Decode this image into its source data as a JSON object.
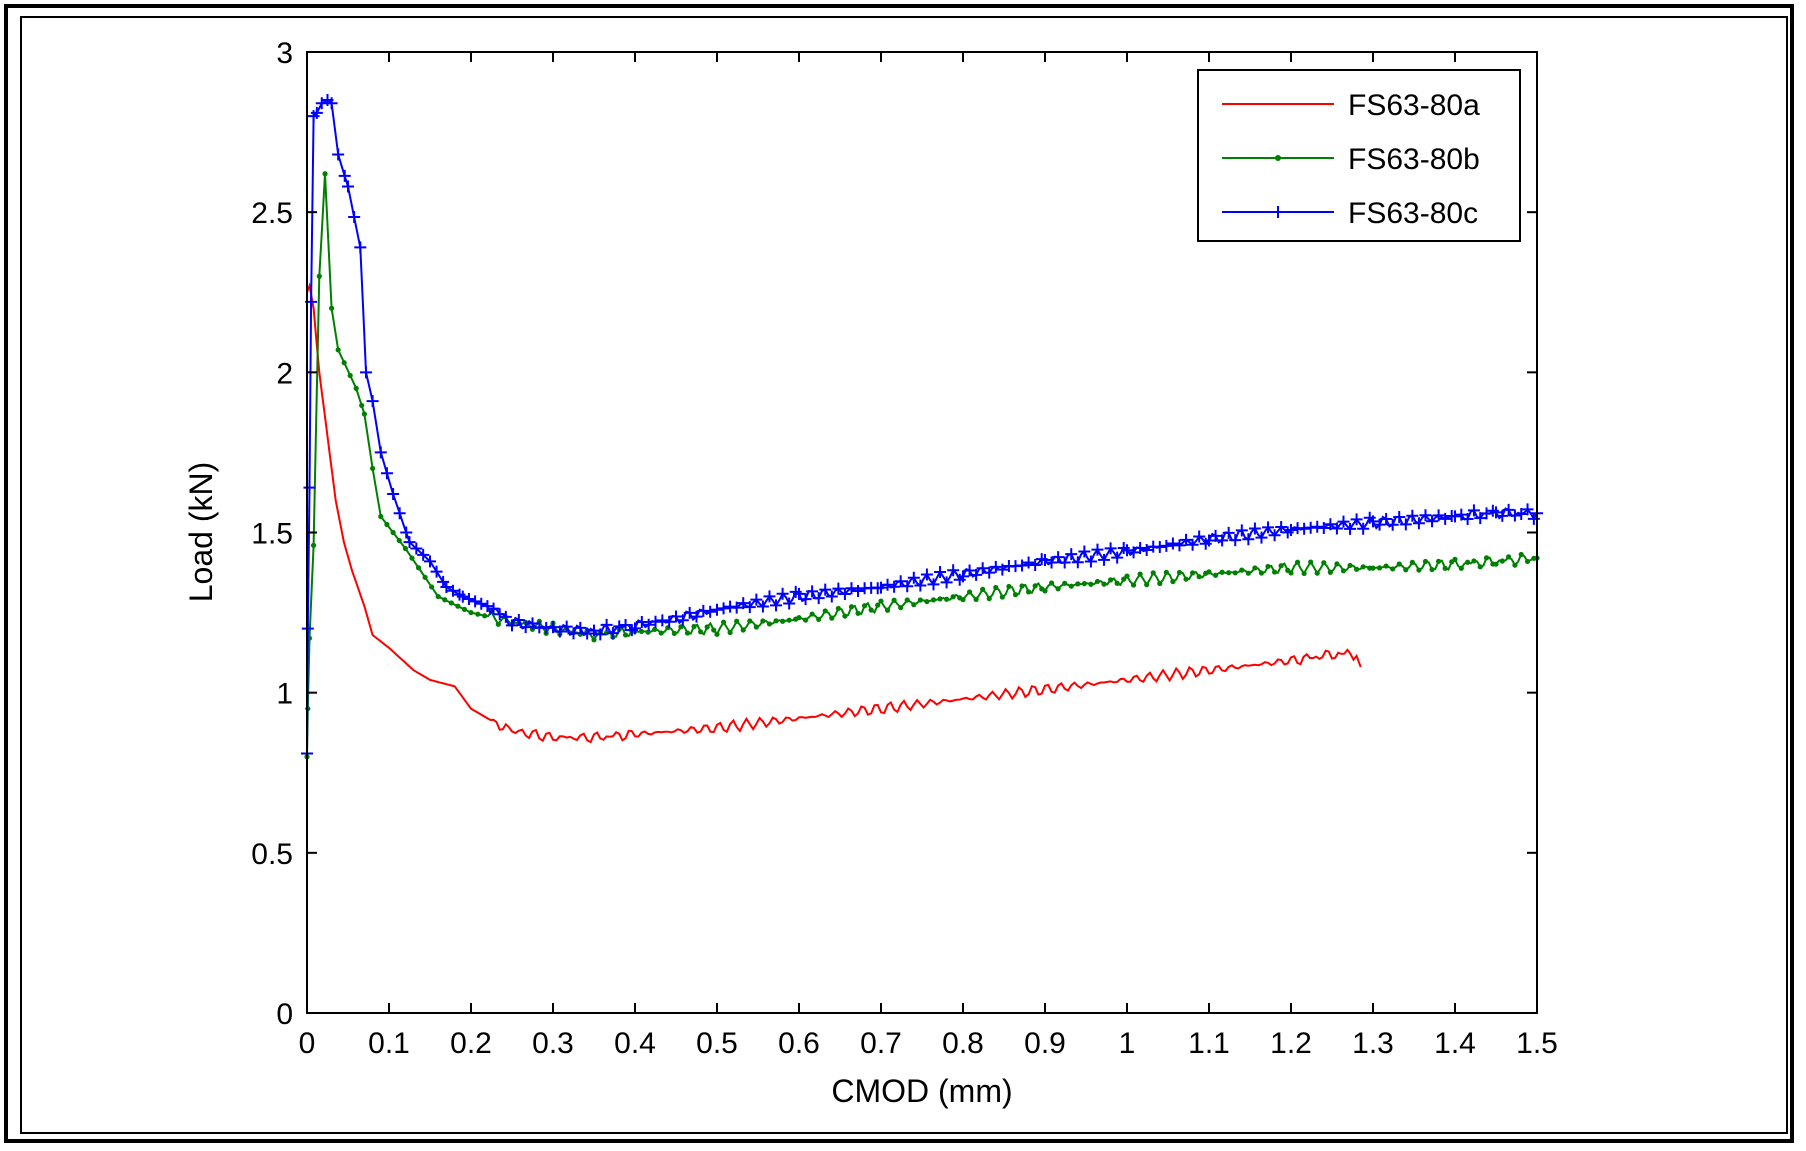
{
  "chart_data": {
    "type": "line",
    "title": "",
    "xlabel": "CMOD (mm)",
    "ylabel": "Load (kN)",
    "xlim": [
      0,
      1.5
    ],
    "ylim": [
      0,
      3
    ],
    "x_ticks": [
      "0",
      "0.1",
      "0.2",
      "0.3",
      "0.4",
      "0.5",
      "0.6",
      "0.7",
      "0.8",
      "0.9",
      "1",
      "1.1",
      "1.2",
      "1.3",
      "1.4",
      "1.5"
    ],
    "y_ticks": [
      "0",
      "0.5",
      "1",
      "1.5",
      "2",
      "2.5",
      "3"
    ],
    "grid": false,
    "legend_position": "top-right",
    "series": [
      {
        "name": "FS63-80a",
        "color": "#ff0000",
        "marker": "none",
        "x": [
          0,
          0.003,
          0.008,
          0.015,
          0.025,
          0.035,
          0.045,
          0.055,
          0.07,
          0.08,
          0.1,
          0.13,
          0.15,
          0.18,
          0.2,
          0.22,
          0.25,
          0.3,
          0.35,
          0.4,
          0.5,
          0.6,
          0.7,
          0.8,
          0.9,
          1.0,
          1.1,
          1.2,
          1.25,
          1.28,
          1.285
        ],
        "y": [
          2.25,
          2.27,
          2.2,
          2.0,
          1.8,
          1.6,
          1.47,
          1.38,
          1.27,
          1.18,
          1.14,
          1.07,
          1.04,
          1.02,
          0.95,
          0.92,
          0.88,
          0.86,
          0.86,
          0.87,
          0.89,
          0.92,
          0.95,
          0.98,
          1.01,
          1.04,
          1.07,
          1.1,
          1.12,
          1.12,
          1.08
        ]
      },
      {
        "name": "FS63-80b",
        "color": "#008000",
        "marker": "dot",
        "x": [
          0,
          0.001,
          0.003,
          0.008,
          0.015,
          0.022,
          0.03,
          0.038,
          0.06,
          0.07,
          0.08,
          0.09,
          0.12,
          0.16,
          0.2,
          0.25,
          0.3,
          0.35,
          0.4,
          0.5,
          0.6,
          0.7,
          0.8,
          0.9,
          1.0,
          1.1,
          1.2,
          1.3,
          1.4,
          1.45,
          1.5
        ],
        "y": [
          0.8,
          0.95,
          1.17,
          1.46,
          2.3,
          2.62,
          2.2,
          2.07,
          1.95,
          1.87,
          1.7,
          1.55,
          1.45,
          1.3,
          1.25,
          1.22,
          1.2,
          1.18,
          1.19,
          1.2,
          1.23,
          1.27,
          1.3,
          1.33,
          1.35,
          1.37,
          1.39,
          1.39,
          1.4,
          1.41,
          1.42
        ]
      },
      {
        "name": "FS63-80c",
        "color": "#0000ff",
        "marker": "plus",
        "x": [
          0,
          0.001,
          0.003,
          0.005,
          0.008,
          0.012,
          0.018,
          0.025,
          0.03,
          0.038,
          0.05,
          0.065,
          0.072,
          0.08,
          0.09,
          0.105,
          0.125,
          0.15,
          0.17,
          0.19,
          0.22,
          0.25,
          0.3,
          0.35,
          0.4,
          0.45,
          0.5,
          0.6,
          0.7,
          0.8,
          0.9,
          1.0,
          1.1,
          1.2,
          1.3,
          1.4,
          1.45,
          1.5
        ],
        "y": [
          0.81,
          1.2,
          1.64,
          2.22,
          2.8,
          2.81,
          2.84,
          2.85,
          2.84,
          2.68,
          2.58,
          2.39,
          2.0,
          1.91,
          1.75,
          1.62,
          1.47,
          1.41,
          1.33,
          1.3,
          1.27,
          1.22,
          1.2,
          1.19,
          1.21,
          1.23,
          1.26,
          1.3,
          1.33,
          1.37,
          1.41,
          1.44,
          1.48,
          1.51,
          1.53,
          1.55,
          1.56,
          1.56
        ]
      }
    ]
  }
}
